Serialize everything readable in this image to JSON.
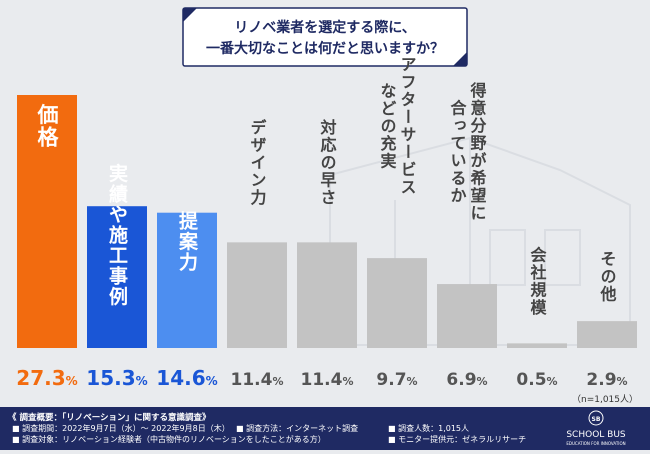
{
  "question": {
    "line1": "リノベ業者を選定する際に、",
    "line2": "一番大切なことは何だと思いますか？"
  },
  "colors": {
    "background": "#e9ebee",
    "orange": "#f26b0f",
    "blue": "#1a56d6",
    "light_blue": "#4d8ef0",
    "gray": "#c3c3c3",
    "footer": "#1f2a63",
    "title_border": "#1f2a63"
  },
  "chart_data": {
    "type": "bar",
    "categories": [
      "価格",
      "実績や施工事例",
      "提案力",
      "デザイン力",
      "対応の早さ",
      "アフターサービスなどの充実",
      "得意分野が希望に合っているか",
      "会社規模",
      "その他"
    ],
    "category_lines": [
      [
        "価格"
      ],
      [
        "実績や施工事例"
      ],
      [
        "提案力"
      ],
      [
        "デザイン力"
      ],
      [
        "対応の早さ"
      ],
      [
        "アフターサービス",
        "などの充実"
      ],
      [
        "得意分野が希望に",
        "合っているか"
      ],
      [
        "会社規模"
      ],
      [
        "その他"
      ]
    ],
    "values": [
      27.3,
      15.3,
      14.6,
      11.4,
      11.4,
      9.7,
      6.9,
      0.5,
      2.9
    ],
    "value_labels": [
      "27.3",
      "15.3",
      "14.6",
      "11.4",
      "11.4",
      "9.7",
      "6.9",
      "0.5",
      "2.9"
    ],
    "unit": "%",
    "bar_colors": [
      "orange",
      "blue",
      "light_blue",
      "gray",
      "gray",
      "gray",
      "gray",
      "gray",
      "gray"
    ],
    "label_in_bar": [
      true,
      true,
      true,
      false,
      false,
      false,
      false,
      false,
      false
    ],
    "ylim": [
      0,
      27.3
    ],
    "grid": false,
    "note": "（n=1,015人）"
  },
  "footer": {
    "heading": "《 調査概要：「リノベーション」に関する意識調査》",
    "period": "■ 調査期間：2022年9月7日（水）〜 2022年9月8日（木）",
    "method": "■ 調査方法：インターネット調査",
    "count": "■ 調査人数：1,015人",
    "target": "■ 調査対象：リノベーション経験者（中古物件のリノベーションをしたことがある方）",
    "provider": "■ モニター提供元：ゼネラルリサーチ",
    "logo_text": "SCHOOL BUS",
    "logo_mark": "SB",
    "logo_sub": "EDUCATION FOR INNOVATION"
  }
}
